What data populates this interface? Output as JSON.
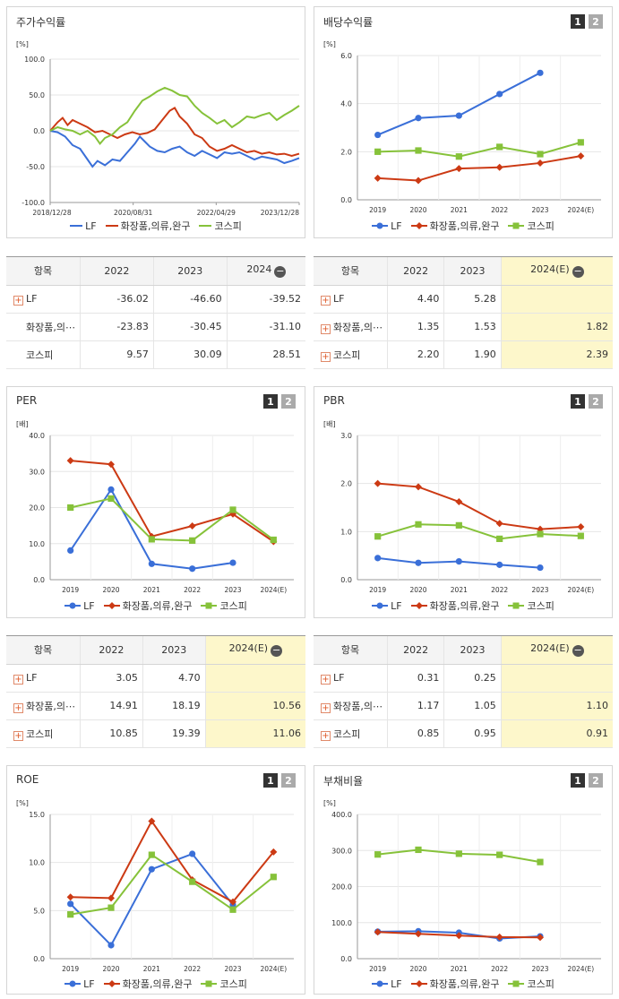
{
  "series_names": [
    "LF",
    "화장품,의류,완구",
    "코스피"
  ],
  "colors": {
    "lf": "#3a6fd8",
    "sector": "#cc3a14",
    "kospi": "#86c23a"
  },
  "stock_return": {
    "title": "주가수익률",
    "unit": "[%]",
    "chart_data": {
      "type": "line",
      "title": "주가수익률",
      "ylabel": "[%]",
      "ylim": [
        -100,
        100
      ],
      "yticks": [
        "100.0",
        "50.0",
        "0.0",
        "-50.0",
        "-100.0"
      ],
      "xticks": [
        "2018/12/28",
        "2020/08/31",
        "2022/04/29",
        "2023/12/28"
      ],
      "x_range": [
        0,
        100
      ],
      "series": [
        {
          "name": "LF",
          "color": "#3a6fd8",
          "points": [
            [
              0,
              0
            ],
            [
              3,
              -2
            ],
            [
              6,
              -8
            ],
            [
              9,
              -20
            ],
            [
              12,
              -25
            ],
            [
              15,
              -40
            ],
            [
              17,
              -50
            ],
            [
              19,
              -42
            ],
            [
              22,
              -48
            ],
            [
              25,
              -40
            ],
            [
              28,
              -42
            ],
            [
              31,
              -30
            ],
            [
              34,
              -18
            ],
            [
              36,
              -8
            ],
            [
              38,
              -15
            ],
            [
              40,
              -22
            ],
            [
              43,
              -28
            ],
            [
              46,
              -30
            ],
            [
              49,
              -25
            ],
            [
              52,
              -22
            ],
            [
              55,
              -30
            ],
            [
              58,
              -35
            ],
            [
              61,
              -28
            ],
            [
              64,
              -33
            ],
            [
              67,
              -38
            ],
            [
              70,
              -30
            ],
            [
              73,
              -32
            ],
            [
              76,
              -30
            ],
            [
              79,
              -35
            ],
            [
              82,
              -40
            ],
            [
              85,
              -36
            ],
            [
              88,
              -38
            ],
            [
              91,
              -40
            ],
            [
              94,
              -45
            ],
            [
              97,
              -42
            ],
            [
              100,
              -38
            ]
          ]
        },
        {
          "name": "화장품,의류,완구",
          "color": "#cc3a14",
          "points": [
            [
              0,
              0
            ],
            [
              3,
              12
            ],
            [
              5,
              18
            ],
            [
              7,
              8
            ],
            [
              9,
              15
            ],
            [
              12,
              10
            ],
            [
              15,
              5
            ],
            [
              18,
              -2
            ],
            [
              21,
              0
            ],
            [
              24,
              -5
            ],
            [
              27,
              -10
            ],
            [
              30,
              -5
            ],
            [
              33,
              -2
            ],
            [
              36,
              -5
            ],
            [
              39,
              -3
            ],
            [
              42,
              2
            ],
            [
              45,
              15
            ],
            [
              48,
              28
            ],
            [
              50,
              32
            ],
            [
              52,
              20
            ],
            [
              55,
              10
            ],
            [
              58,
              -5
            ],
            [
              61,
              -10
            ],
            [
              64,
              -22
            ],
            [
              67,
              -28
            ],
            [
              70,
              -25
            ],
            [
              73,
              -20
            ],
            [
              76,
              -25
            ],
            [
              79,
              -30
            ],
            [
              82,
              -28
            ],
            [
              85,
              -32
            ],
            [
              88,
              -30
            ],
            [
              91,
              -33
            ],
            [
              94,
              -32
            ],
            [
              97,
              -35
            ],
            [
              100,
              -32
            ]
          ]
        },
        {
          "name": "코스피",
          "color": "#86c23a",
          "points": [
            [
              0,
              0
            ],
            [
              3,
              5
            ],
            [
              6,
              2
            ],
            [
              9,
              0
            ],
            [
              12,
              -5
            ],
            [
              15,
              0
            ],
            [
              18,
              -8
            ],
            [
              20,
              -18
            ],
            [
              22,
              -10
            ],
            [
              25,
              -5
            ],
            [
              28,
              5
            ],
            [
              31,
              12
            ],
            [
              34,
              28
            ],
            [
              37,
              42
            ],
            [
              40,
              48
            ],
            [
              43,
              55
            ],
            [
              46,
              60
            ],
            [
              49,
              56
            ],
            [
              52,
              50
            ],
            [
              55,
              48
            ],
            [
              58,
              35
            ],
            [
              61,
              25
            ],
            [
              64,
              18
            ],
            [
              67,
              10
            ],
            [
              70,
              15
            ],
            [
              73,
              5
            ],
            [
              76,
              12
            ],
            [
              79,
              20
            ],
            [
              82,
              18
            ],
            [
              85,
              22
            ],
            [
              88,
              25
            ],
            [
              91,
              15
            ],
            [
              94,
              22
            ],
            [
              97,
              28
            ],
            [
              100,
              35
            ]
          ]
        }
      ]
    }
  },
  "dividend_yield": {
    "title": "배당수익률",
    "unit": "[%]",
    "chart_data": {
      "type": "line",
      "title": "배당수익률",
      "ylabel": "[%]",
      "ylim": [
        0,
        6
      ],
      "yticks": [
        "6.0",
        "4.0",
        "2.0",
        "0.0"
      ],
      "categories": [
        "2019",
        "2020",
        "2021",
        "2022",
        "2023",
        "2024(E)"
      ],
      "series": [
        {
          "name": "LF",
          "values": [
            2.7,
            3.4,
            3.5,
            4.4,
            5.28,
            null
          ]
        },
        {
          "name": "화장품,의류,완구",
          "values": [
            0.9,
            0.8,
            1.3,
            1.35,
            1.53,
            1.82
          ]
        },
        {
          "name": "코스피",
          "values": [
            2.0,
            2.05,
            1.8,
            2.2,
            1.9,
            2.39
          ]
        }
      ]
    }
  },
  "per": {
    "title": "PER",
    "unit": "[배]",
    "chart_data": {
      "type": "line",
      "title": "PER",
      "ylabel": "[배]",
      "ylim": [
        0,
        40
      ],
      "yticks": [
        "40.0",
        "30.0",
        "20.0",
        "10.0",
        "0.0"
      ],
      "categories": [
        "2019",
        "2020",
        "2021",
        "2022",
        "2023",
        "2024(E)"
      ],
      "series": [
        {
          "name": "LF",
          "values": [
            8.1,
            25.0,
            4.4,
            3.05,
            4.7,
            null
          ]
        },
        {
          "name": "화장품,의류,완구",
          "values": [
            33.0,
            32.0,
            12.0,
            14.91,
            18.19,
            10.56
          ]
        },
        {
          "name": "코스피",
          "values": [
            20.0,
            22.5,
            11.2,
            10.85,
            19.39,
            11.06
          ]
        }
      ]
    }
  },
  "pbr": {
    "title": "PBR",
    "unit": "[배]",
    "chart_data": {
      "type": "line",
      "title": "PBR",
      "ylabel": "[배]",
      "ylim": [
        0,
        3
      ],
      "yticks": [
        "3.0",
        "2.0",
        "1.0",
        "0.0"
      ],
      "categories": [
        "2019",
        "2020",
        "2021",
        "2022",
        "2023",
        "2024(E)"
      ],
      "series": [
        {
          "name": "LF",
          "values": [
            0.45,
            0.35,
            0.38,
            0.31,
            0.25,
            null
          ]
        },
        {
          "name": "화장품,의류,완구",
          "values": [
            2.0,
            1.93,
            1.62,
            1.17,
            1.05,
            1.1
          ]
        },
        {
          "name": "코스피",
          "values": [
            0.9,
            1.15,
            1.13,
            0.85,
            0.95,
            0.91
          ]
        }
      ]
    }
  },
  "roe": {
    "title": "ROE",
    "unit": "[%]",
    "chart_data": {
      "type": "line",
      "title": "ROE",
      "ylabel": "[%]",
      "ylim": [
        0,
        15
      ],
      "yticks": [
        "15.0",
        "10.0",
        "5.0",
        "0.0"
      ],
      "categories": [
        "2019",
        "2020",
        "2021",
        "2022",
        "2023",
        "2024(E)"
      ],
      "series": [
        {
          "name": "LF",
          "values": [
            5.7,
            1.4,
            9.3,
            10.9,
            5.6,
            null
          ]
        },
        {
          "name": "화장품,의류,완구",
          "values": [
            6.4,
            6.3,
            14.3,
            8.2,
            5.9,
            11.1
          ]
        },
        {
          "name": "코스피",
          "values": [
            4.6,
            5.3,
            10.8,
            8.0,
            5.1,
            8.5
          ]
        }
      ]
    }
  },
  "debt_ratio": {
    "title": "부채비율",
    "unit": "[%]",
    "chart_data": {
      "type": "line",
      "title": "부채비율",
      "ylabel": "[%]",
      "ylim": [
        0,
        400
      ],
      "yticks": [
        "400.0",
        "300.0",
        "200.0",
        "100.0",
        "0.0"
      ],
      "categories": [
        "2019",
        "2020",
        "2021",
        "2022",
        "2023",
        "2024(E)"
      ],
      "series": [
        {
          "name": "LF",
          "values": [
            75,
            76,
            72,
            56,
            62,
            null
          ]
        },
        {
          "name": "화장품,의류,완구",
          "values": [
            74,
            69,
            64,
            60,
            59,
            null
          ]
        },
        {
          "name": "코스피",
          "values": [
            289,
            302,
            291,
            288,
            268,
            null
          ]
        }
      ]
    }
  },
  "tables": {
    "stock_return": {
      "headers": [
        "항목",
        "2022",
        "2023",
        "2024"
      ],
      "rows": [
        {
          "label": "LF",
          "values": [
            "-36.02",
            "-46.60",
            "-39.52"
          ]
        },
        {
          "label": "화장품,의⋯",
          "values": [
            "-23.83",
            "-30.45",
            "-31.10"
          ]
        },
        {
          "label": "코스피",
          "values": [
            "9.57",
            "30.09",
            "28.51"
          ]
        }
      ]
    },
    "dividend_yield": {
      "headers": [
        "항목",
        "2022",
        "2023",
        "2024(E)"
      ],
      "rows": [
        {
          "label": "LF",
          "values": [
            "4.40",
            "5.28",
            ""
          ]
        },
        {
          "label": "화장품,의⋯",
          "values": [
            "1.35",
            "1.53",
            "1.82"
          ]
        },
        {
          "label": "코스피",
          "values": [
            "2.20",
            "1.90",
            "2.39"
          ]
        }
      ]
    },
    "per": {
      "headers": [
        "항목",
        "2022",
        "2023",
        "2024(E)"
      ],
      "rows": [
        {
          "label": "LF",
          "values": [
            "3.05",
            "4.70",
            ""
          ]
        },
        {
          "label": "화장품,의⋯",
          "values": [
            "14.91",
            "18.19",
            "10.56"
          ]
        },
        {
          "label": "코스피",
          "values": [
            "10.85",
            "19.39",
            "11.06"
          ]
        }
      ]
    },
    "pbr": {
      "headers": [
        "항목",
        "2022",
        "2023",
        "2024(E)"
      ],
      "rows": [
        {
          "label": "LF",
          "values": [
            "0.31",
            "0.25",
            ""
          ]
        },
        {
          "label": "화장품,의⋯",
          "values": [
            "1.17",
            "1.05",
            "1.10"
          ]
        },
        {
          "label": "코스피",
          "values": [
            "0.85",
            "0.95",
            "0.91"
          ]
        }
      ]
    }
  },
  "pager": {
    "page1": "1",
    "page2": "2"
  }
}
